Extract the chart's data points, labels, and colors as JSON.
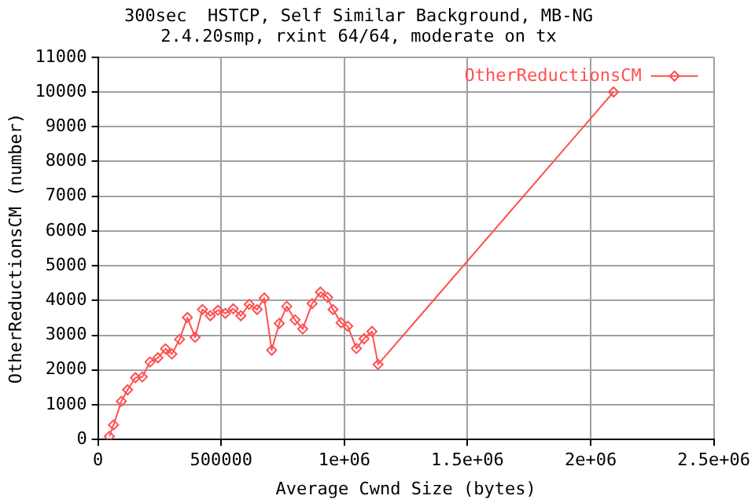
{
  "chart_data": {
    "type": "line",
    "title": "300sec  HSTCP, Self Similar Background, MB-NG",
    "subtitle": "2.4.20smp, rxint 64/64, moderate on tx",
    "xlabel": "Average Cwnd Size (bytes)",
    "ylabel": "OtherReductionsCM (number)",
    "x": [
      46000,
      63000,
      95000,
      120000,
      152000,
      180000,
      211000,
      243000,
      274000,
      300000,
      331000,
      363000,
      394000,
      424000,
      456000,
      487000,
      517000,
      549000,
      580000,
      614000,
      646000,
      675000,
      705000,
      736000,
      766000,
      800000,
      831000,
      869000,
      903000,
      932000,
      954000,
      987000,
      1014000,
      1049000,
      1080000,
      1112000,
      1137000,
      2093000
    ],
    "series": [
      {
        "name": "OtherReductionsCM",
        "color": "#ff5050",
        "values": [
          90,
          420,
          1100,
          1430,
          1780,
          1800,
          2230,
          2350,
          2610,
          2460,
          2880,
          3510,
          2940,
          3740,
          3560,
          3720,
          3630,
          3760,
          3560,
          3890,
          3740,
          4070,
          2570,
          3340,
          3830,
          3440,
          3180,
          3910,
          4240,
          4090,
          3740,
          3360,
          3260,
          2620,
          2900,
          3110,
          2160,
          10000
        ]
      }
    ],
    "xlim": [
      0,
      2500000
    ],
    "xticks": [
      0,
      500000,
      {
        "value": 1000000,
        "label": "1e+06"
      },
      {
        "value": 1500000,
        "label": "1.5e+06"
      },
      {
        "value": 2000000,
        "label": "2e+06"
      },
      {
        "value": 2500000,
        "label": "2.5e+06"
      }
    ],
    "ylim": [
      0,
      11000
    ],
    "yticks": [
      0,
      1000,
      2000,
      3000,
      4000,
      5000,
      6000,
      7000,
      8000,
      9000,
      10000,
      11000
    ],
    "grid": true,
    "legend": "top right",
    "marker": "diamond",
    "line_style": "solid"
  }
}
